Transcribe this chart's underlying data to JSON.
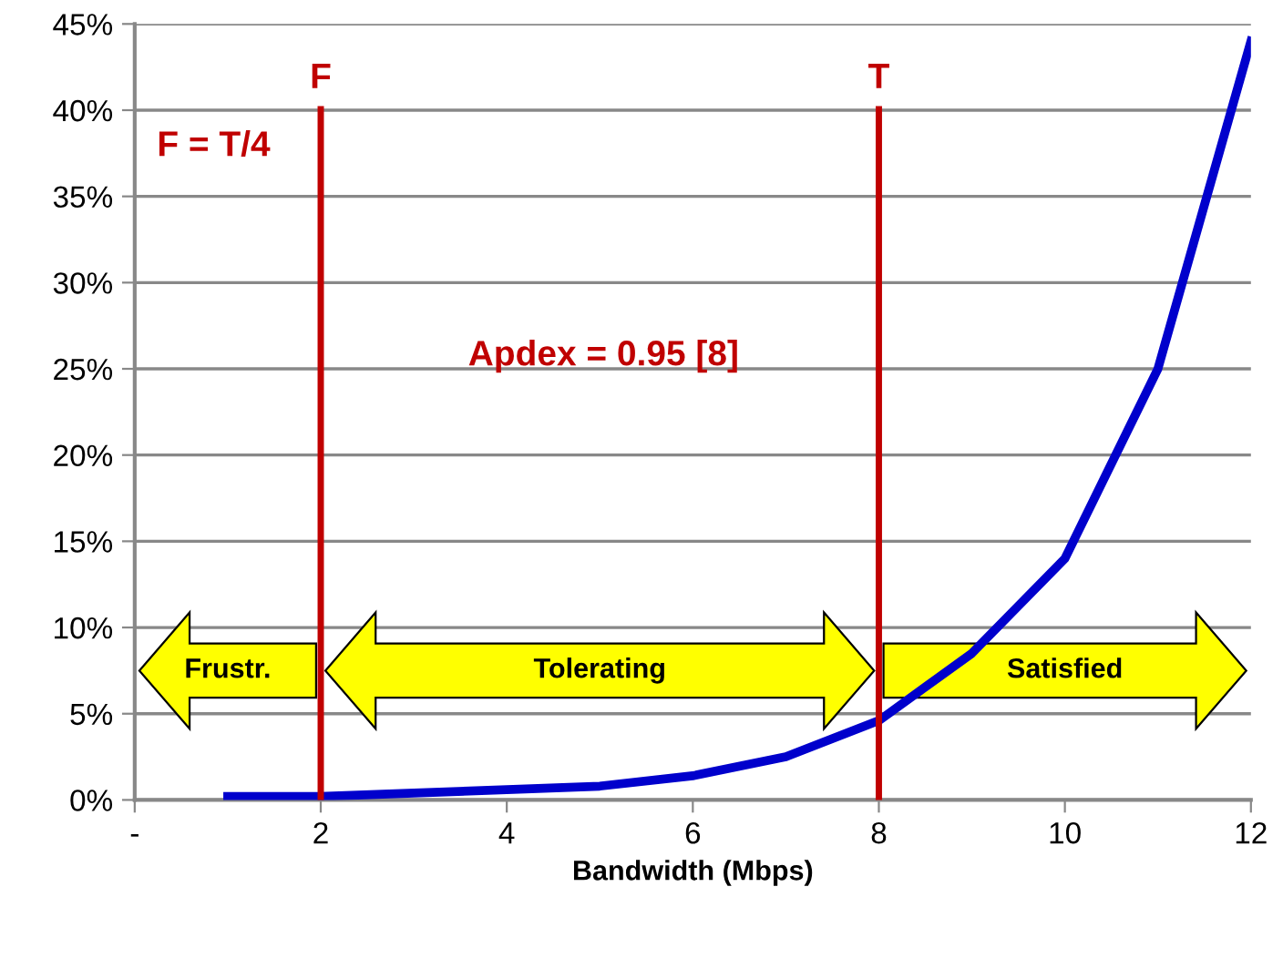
{
  "chart_data": {
    "type": "line",
    "xlabel": "Bandwidth (Mbps)",
    "x": [
      1,
      2,
      3,
      4,
      5,
      6,
      7,
      8,
      9,
      10,
      11,
      12
    ],
    "series": [
      {
        "color": "#0000cc",
        "values": [
          0.2,
          0.2,
          0.4,
          0.6,
          0.8,
          1.4,
          2.5,
          4.6,
          8.5,
          14,
          25,
          44
        ]
      }
    ],
    "xlim": [
      0,
      12
    ],
    "xticks": [
      {
        "value": 0,
        "label": "-"
      },
      2,
      4,
      6,
      8,
      10,
      12
    ],
    "ylim": [
      0,
      45
    ],
    "yticks": [
      {
        "value": 0,
        "label": "0%"
      },
      {
        "value": 5,
        "label": "5%"
      },
      {
        "value": 10,
        "label": "10%"
      },
      {
        "value": 15,
        "label": "15%"
      },
      {
        "value": 20,
        "label": "20%"
      },
      {
        "value": 25,
        "label": "25%"
      },
      {
        "value": 30,
        "label": "30%"
      },
      {
        "value": 35,
        "label": "35%"
      },
      {
        "value": 40,
        "label": "40%"
      },
      {
        "value": 45,
        "label": "45%"
      }
    ],
    "grid": "y",
    "marker": "none",
    "line_style": "solid",
    "ref_lines": [
      {
        "axis": "x",
        "value": 2,
        "label": "F",
        "color": "#c00000"
      },
      {
        "axis": "x",
        "value": 8,
        "label": "T",
        "color": "#c00000"
      }
    ],
    "annotations": [
      "F = T/4",
      "Apdex = 0.95 [8]",
      {
        "text": "Frustr.",
        "x": 2,
        "y": 7.5
      },
      "Tolerating",
      "Satisfied"
    ]
  }
}
